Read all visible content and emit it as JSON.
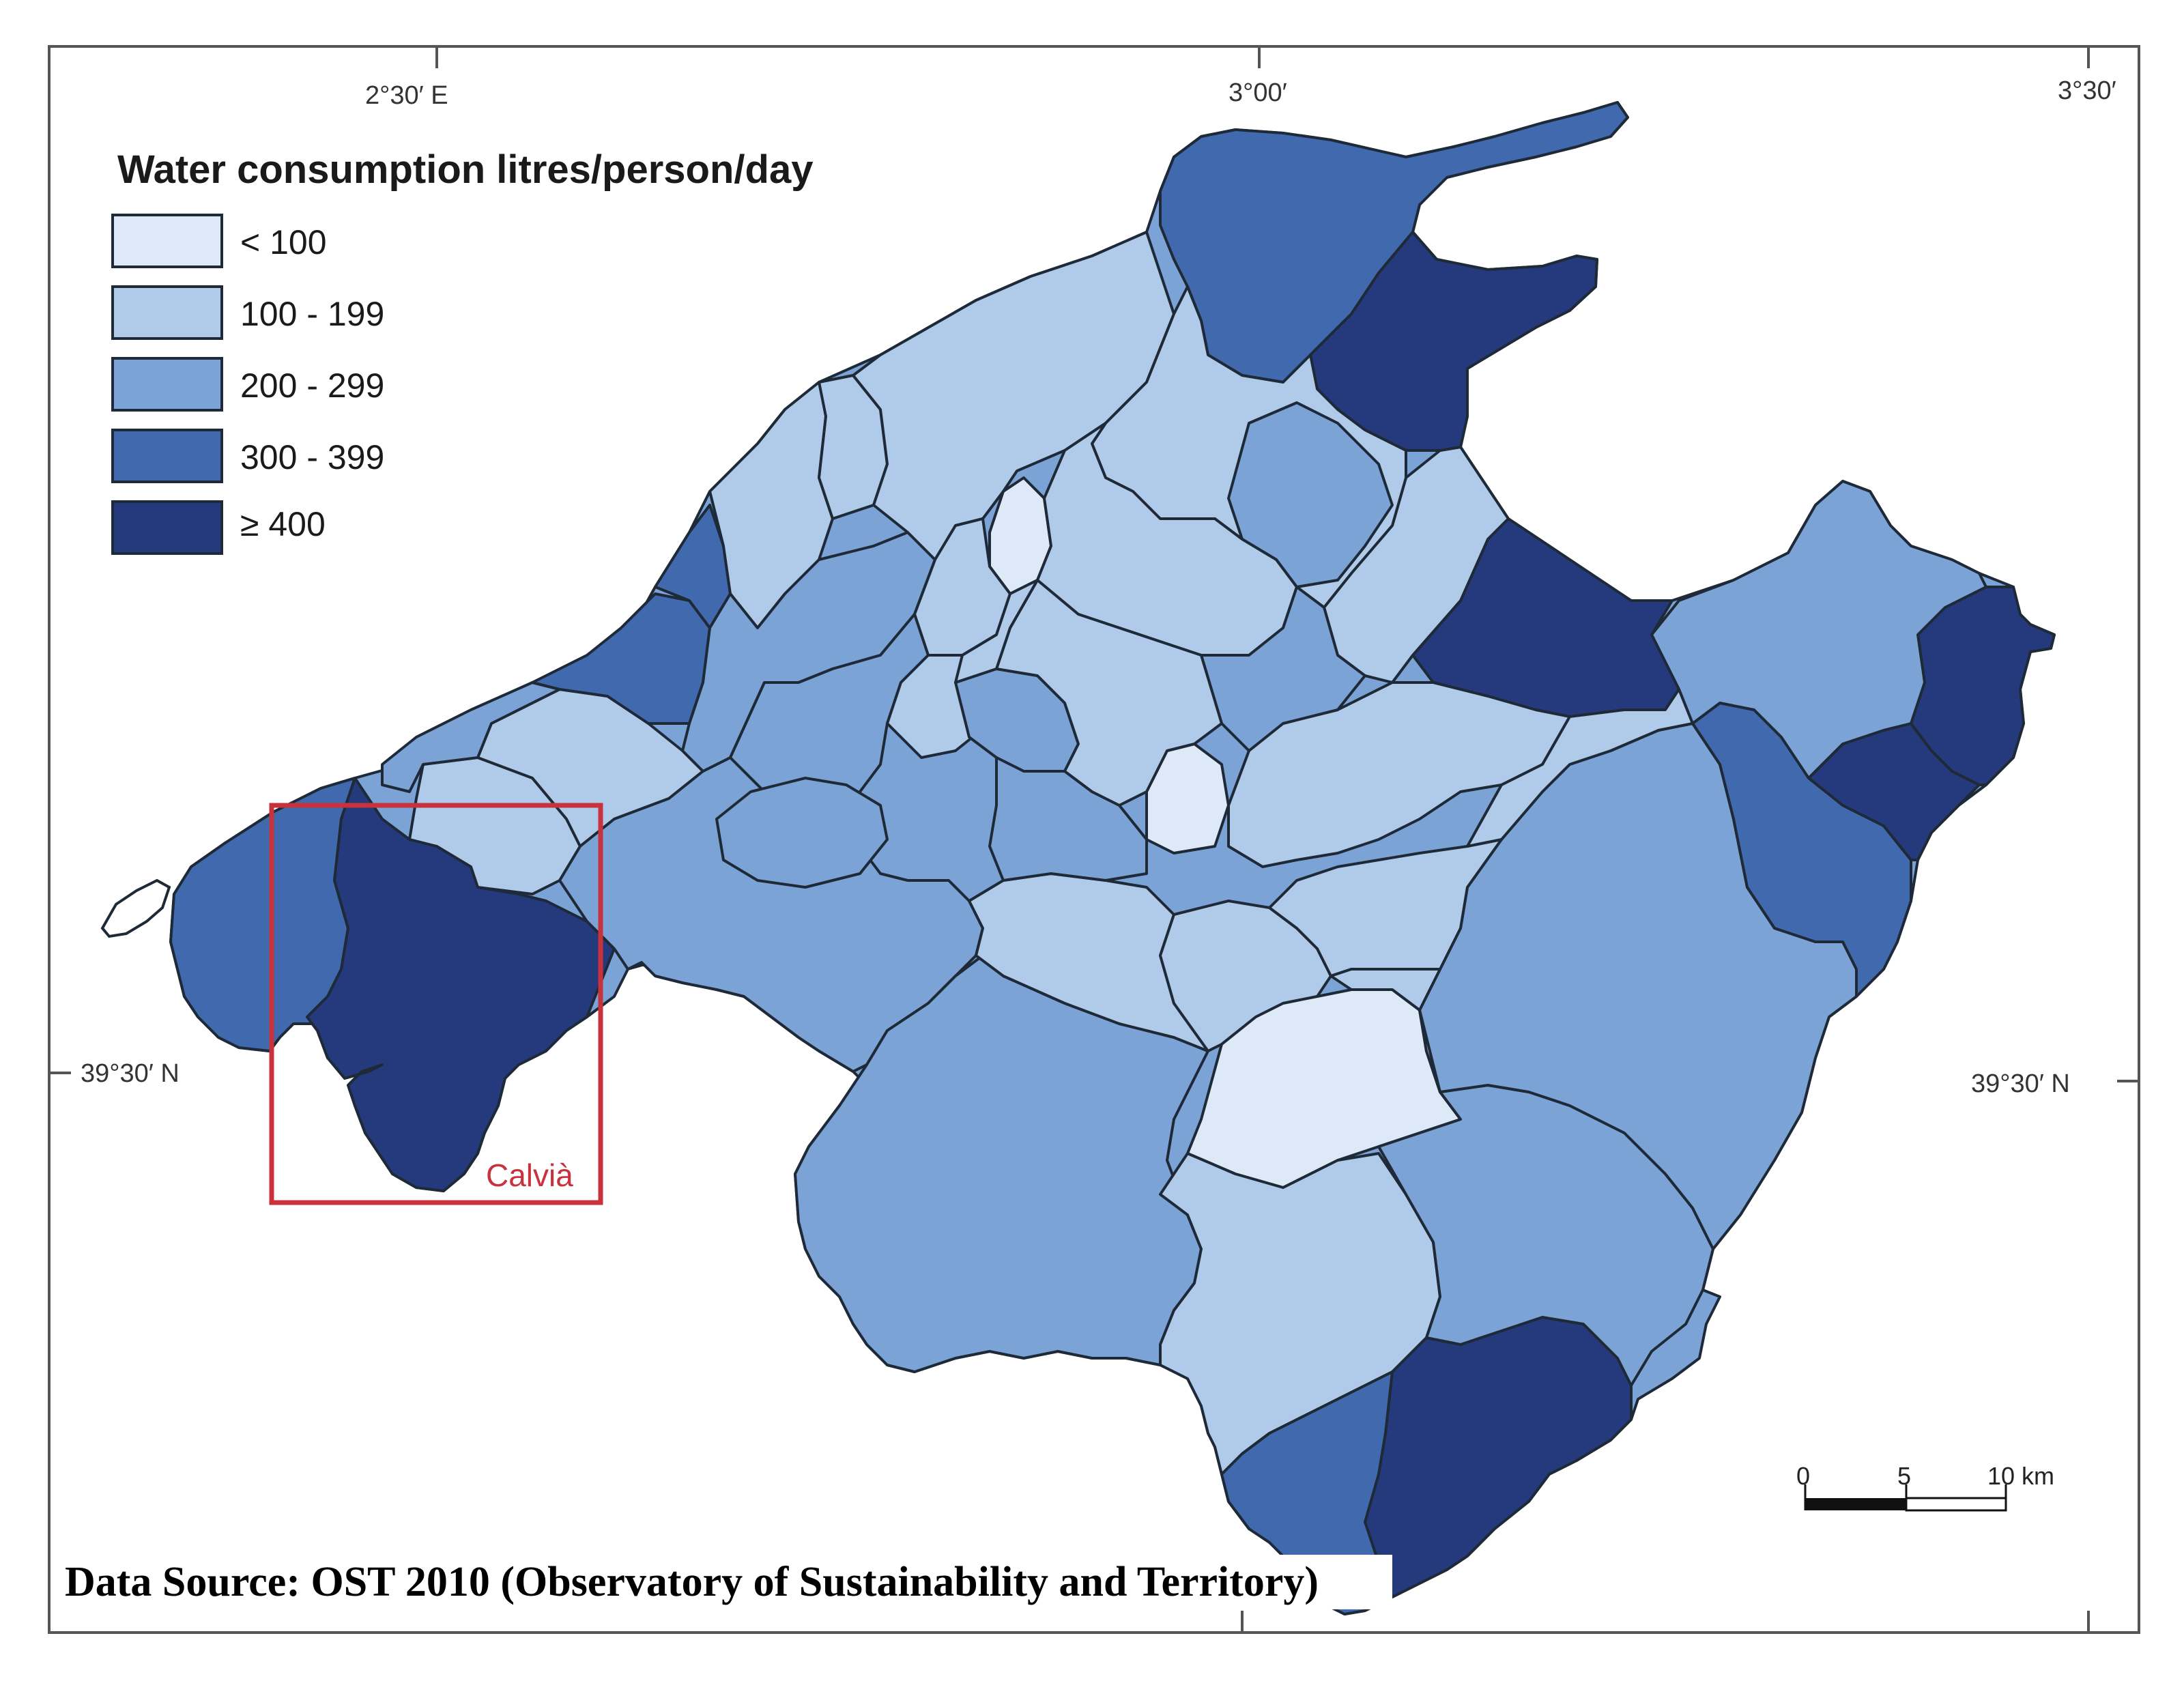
{
  "legend": {
    "title": "Water consumption litres/person/day",
    "classes": [
      {
        "label": "< 100",
        "color": "#dde9f7"
      },
      {
        "label": "100 - 199",
        "color": "#b0cbea"
      },
      {
        "label": "200 - 299",
        "color": "#7ba3d6"
      },
      {
        "label": "300 - 399",
        "color": "#4169ae"
      },
      {
        "label": "≥ 400",
        "color": "#253a7c"
      }
    ]
  },
  "graticule": {
    "top": [
      "2°30′ E",
      "3°00′",
      "3°30′"
    ],
    "left": "39°30′ N",
    "right": "39°30′ N"
  },
  "highlight": {
    "label": "Calvià",
    "color": "#c8323c"
  },
  "scale_bar": {
    "ticks": [
      "0",
      "5",
      "10 km"
    ]
  },
  "source": "Data Source: OST 2010 (Observatory of Sustainability and Territory)",
  "colors": {
    "border": "#1f2a38",
    "frame": "#555555"
  }
}
